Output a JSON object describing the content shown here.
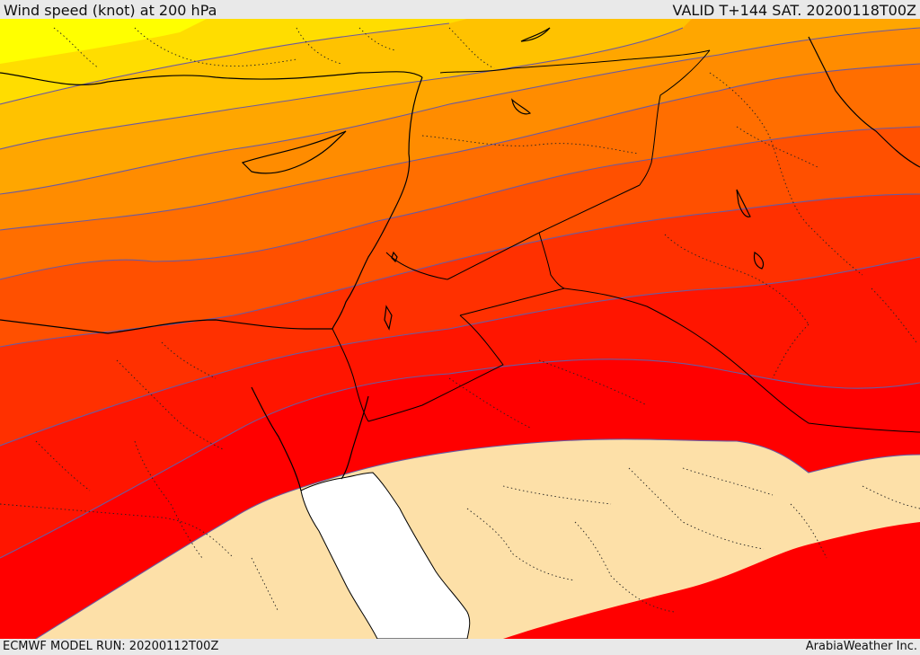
{
  "header": {
    "title": "Wind speed (knot) at 200 hPa",
    "valid": "VALID T+144 SAT. 20200118T00Z"
  },
  "footer": {
    "model_run": "ECMWF MODEL RUN: 20200112T00Z",
    "brand": "ArabiaWeather Inc."
  },
  "map": {
    "variable": "wind speed",
    "unit": "knot",
    "level_hPa": 200,
    "band_colors": [
      "#ffff00",
      "#ffdd00",
      "#ffc200",
      "#ffa600",
      "#ff8c00",
      "#ff6e00",
      "#ff5000",
      "#ff3000",
      "#ff1500",
      "#ff0000",
      "#fde0a8",
      "#ffffff"
    ],
    "contour_color": "#6b5aa0",
    "border_color": "#000000"
  }
}
